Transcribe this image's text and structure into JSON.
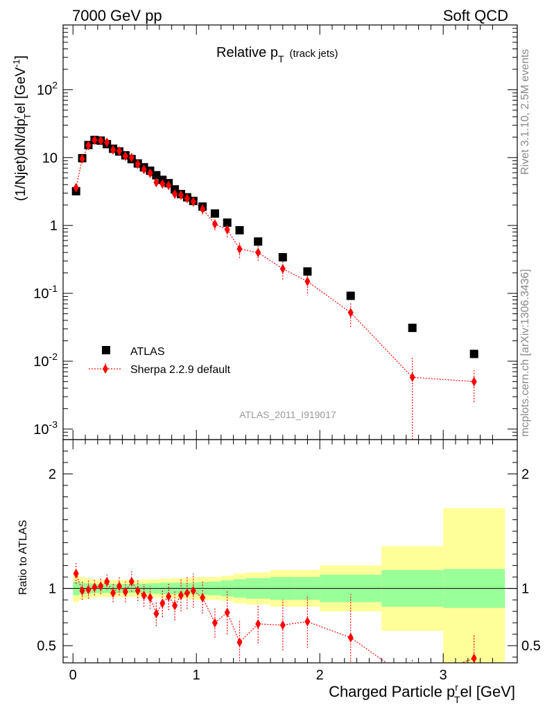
{
  "header": {
    "left": "7000 GeV pp",
    "right": "Soft QCD"
  },
  "side": {
    "rivet": "Rivet 3.1.10,  2.5M events",
    "mcplots": "mcplots.cern.ch [arXiv:1306.3436]"
  },
  "labels": {
    "title": "Relative p",
    "title_sub": "T",
    "title_suffix": "(track jets)",
    "ylabel": "(1/Njet)dN/dp",
    "ylabel_sup": "r",
    "ylabel_sub": "T",
    "ylabel_mid": "el [GeV",
    "ylabel_sup2": "-1",
    "ylabel_end": "]",
    "ratio_ylabel": "Ratio to ATLAS",
    "xlabel_pre": "Charged Particle p",
    "xlabel_sup": "r",
    "xlabel_sub": "T",
    "xlabel_post": "el [GeV]",
    "watermark": "ATLAS_2011_I919017"
  },
  "legend": {
    "atlas": "ATLAS",
    "sherpa": "Sherpa 2.2.9 default"
  },
  "colors": {
    "data": "#000000",
    "mc": "#ff0000",
    "band_inner": "#99ff99",
    "band_outer": "#ffff99"
  },
  "chart_data": {
    "type": "scatter",
    "main": {
      "yscale": "log",
      "xlim": [
        -0.08,
        3.6
      ],
      "ylim": [
        0.0007,
        900
      ],
      "ytick_labels": [
        "10^-3",
        "10^-2",
        "10^-1",
        "1",
        "10",
        "10^2"
      ],
      "ytick_values": [
        0.001,
        0.01,
        0.1,
        1,
        10,
        100
      ]
    },
    "ratio": {
      "ylim": [
        0.35,
        2.3
      ],
      "ytick_labels": [
        "0.5",
        "1",
        "2"
      ],
      "ytick_values": [
        0.5,
        1,
        2
      ]
    },
    "xtick_labels": [
      "0",
      "1",
      "2",
      "3"
    ],
    "xtick_values": [
      0,
      1,
      2,
      3
    ],
    "series": [
      {
        "name": "ATLAS",
        "marker": "square",
        "x": [
          0.025,
          0.075,
          0.125,
          0.175,
          0.225,
          0.275,
          0.325,
          0.375,
          0.425,
          0.475,
          0.525,
          0.575,
          0.625,
          0.675,
          0.725,
          0.775,
          0.825,
          0.875,
          0.925,
          0.975,
          1.05,
          1.15,
          1.25,
          1.35,
          1.5,
          1.7,
          1.9,
          2.25,
          2.75,
          3.25
        ],
        "y": [
          3.2,
          9.8,
          15.3,
          18.2,
          17.8,
          15.8,
          13.5,
          12.3,
          10.8,
          9.5,
          8.2,
          7.2,
          6.4,
          5.5,
          4.7,
          4.2,
          3.4,
          2.9,
          2.6,
          2.3,
          1.9,
          1.5,
          1.1,
          0.85,
          0.58,
          0.34,
          0.21,
          0.092,
          0.031,
          0.0128
        ]
      },
      {
        "name": "Sherpa 2.2.9 default",
        "marker": "diamond",
        "x": [
          0.025,
          0.075,
          0.125,
          0.175,
          0.225,
          0.275,
          0.325,
          0.375,
          0.425,
          0.475,
          0.525,
          0.575,
          0.625,
          0.675,
          0.725,
          0.775,
          0.825,
          0.875,
          0.925,
          0.975,
          1.05,
          1.15,
          1.25,
          1.35,
          1.5,
          1.7,
          1.9,
          2.25,
          2.75,
          3.25
        ],
        "y": [
          3.6,
          9.6,
          15.1,
          18.0,
          17.8,
          16.8,
          13.0,
          12.5,
          10.5,
          10.0,
          8.0,
          6.7,
          5.9,
          4.3,
          4.1,
          3.9,
          2.9,
          2.8,
          2.5,
          2.25,
          1.75,
          1.05,
          0.87,
          0.45,
          0.4,
          0.23,
          0.15,
          0.052,
          0.0058,
          0.005
        ],
        "yerr": [
          0.25,
          0.6,
          0.9,
          1.0,
          1.0,
          1.0,
          0.9,
          0.9,
          0.8,
          0.8,
          0.7,
          0.6,
          0.6,
          0.5,
          0.5,
          0.5,
          0.4,
          0.4,
          0.35,
          0.35,
          0.3,
          0.2,
          0.2,
          0.12,
          0.1,
          0.07,
          0.05,
          0.02,
          0.0058,
          0.0025
        ],
        "ratio": [
          1.13,
          0.98,
          0.99,
          1.01,
          1.02,
          1.06,
          0.96,
          1.02,
          0.97,
          1.06,
          0.98,
          0.94,
          0.92,
          0.78,
          0.87,
          0.93,
          0.85,
          0.94,
          0.96,
          0.98,
          0.92,
          0.7,
          0.79,
          0.53,
          0.69,
          0.68,
          0.71,
          0.57,
          0.19,
          0.39
        ],
        "ratio_err": [
          0.09,
          0.08,
          0.08,
          0.07,
          0.07,
          0.07,
          0.08,
          0.08,
          0.09,
          0.09,
          0.09,
          0.1,
          0.1,
          0.11,
          0.12,
          0.12,
          0.13,
          0.14,
          0.14,
          0.15,
          0.14,
          0.13,
          0.19,
          0.19,
          0.17,
          0.22,
          0.23,
          0.38,
          0.19,
          0.2
        ]
      }
    ],
    "bands": {
      "x_edges": [
        0.0,
        0.05,
        0.1,
        0.15,
        0.2,
        0.25,
        0.3,
        0.35,
        0.4,
        0.45,
        0.5,
        0.55,
        0.6,
        0.65,
        0.7,
        0.75,
        0.8,
        0.85,
        0.9,
        0.95,
        1.0,
        1.1,
        1.2,
        1.3,
        1.4,
        1.6,
        1.8,
        2.0,
        2.5,
        3.0,
        3.5
      ],
      "inner": [
        0.06,
        0.05,
        0.045,
        0.04,
        0.04,
        0.04,
        0.04,
        0.04,
        0.04,
        0.04,
        0.04,
        0.04,
        0.045,
        0.045,
        0.05,
        0.05,
        0.05,
        0.05,
        0.05,
        0.05,
        0.055,
        0.06,
        0.07,
        0.08,
        0.09,
        0.1,
        0.1,
        0.12,
        0.16,
        0.17
      ],
      "outer": [
        0.12,
        0.1,
        0.09,
        0.08,
        0.075,
        0.075,
        0.075,
        0.075,
        0.075,
        0.075,
        0.075,
        0.08,
        0.08,
        0.08,
        0.085,
        0.085,
        0.09,
        0.09,
        0.09,
        0.095,
        0.1,
        0.1,
        0.11,
        0.13,
        0.14,
        0.16,
        0.16,
        0.2,
        0.37,
        0.7
      ]
    }
  }
}
